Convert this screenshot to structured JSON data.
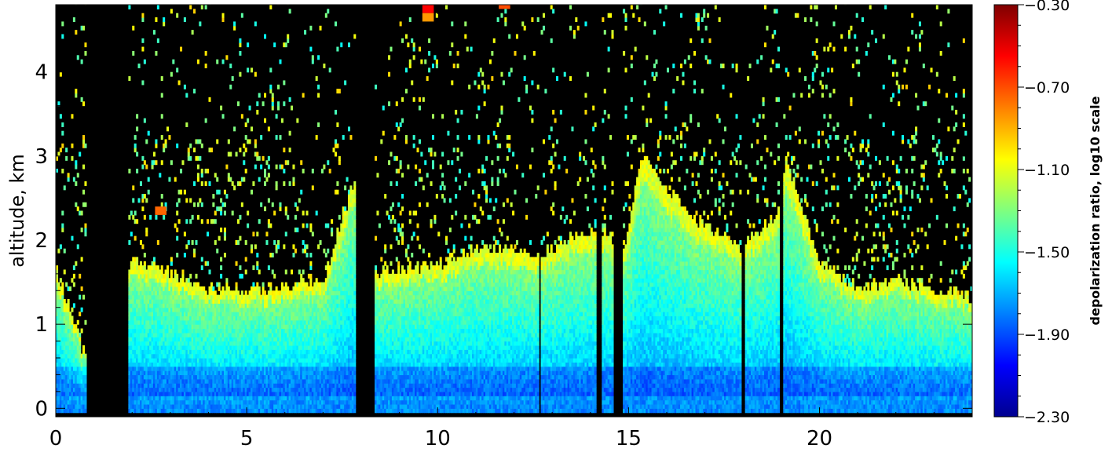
{
  "chart_data": {
    "type": "heatmap",
    "title": "",
    "xlabel": "",
    "ylabel": "altitude,  km",
    "xlim": [
      0,
      24
    ],
    "ylim": [
      -0.1,
      4.8
    ],
    "x_ticks": [
      "0",
      "5",
      "10",
      "15",
      "20"
    ],
    "y_ticks": [
      "0",
      "1",
      "2",
      "3",
      "4"
    ],
    "colorbar": {
      "label": "depolarization ratio, log10 scale",
      "range": [
        -2.3,
        -0.3
      ],
      "ticks": [
        "−2.30",
        "−1.90",
        "−1.50",
        "−1.10",
        "−0.70",
        "−0.30"
      ],
      "colormap": "jet"
    },
    "background_color": "#000000",
    "features": {
      "no_data_intervals_hours": [
        [
          0.8,
          1.9
        ],
        [
          7.85,
          8.35
        ],
        [
          12.65,
          12.72
        ],
        [
          14.15,
          14.3
        ],
        [
          14.6,
          14.85
        ],
        [
          17.95,
          18.05
        ],
        [
          18.95,
          19.05
        ]
      ],
      "boundary_layer_top_km": [
        {
          "x": 0.0,
          "top": 1.6
        },
        {
          "x": 0.8,
          "top": 0.5
        },
        {
          "x": 1.9,
          "top": 1.7
        },
        {
          "x": 3.0,
          "top": 1.6
        },
        {
          "x": 4.0,
          "top": 1.4
        },
        {
          "x": 5.5,
          "top": 1.4
        },
        {
          "x": 7.0,
          "top": 1.55
        },
        {
          "x": 7.8,
          "top": 2.7
        },
        {
          "x": 8.4,
          "top": 1.6
        },
        {
          "x": 10.0,
          "top": 1.7
        },
        {
          "x": 11.0,
          "top": 1.9
        },
        {
          "x": 12.6,
          "top": 1.8
        },
        {
          "x": 13.5,
          "top": 2.0
        },
        {
          "x": 14.1,
          "top": 2.1
        },
        {
          "x": 14.9,
          "top": 1.9
        },
        {
          "x": 15.3,
          "top": 3.0
        },
        {
          "x": 16.5,
          "top": 2.3
        },
        {
          "x": 17.9,
          "top": 1.9
        },
        {
          "x": 18.9,
          "top": 2.3
        },
        {
          "x": 19.1,
          "top": 2.9
        },
        {
          "x": 20.0,
          "top": 1.7
        },
        {
          "x": 21.0,
          "top": 1.4
        },
        {
          "x": 22.0,
          "top": 1.5
        },
        {
          "x": 24.0,
          "top": 1.3
        }
      ]
    }
  }
}
